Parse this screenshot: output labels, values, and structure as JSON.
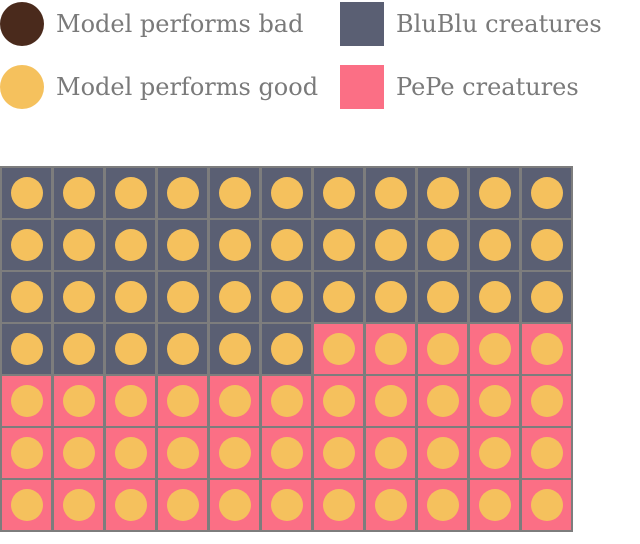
{
  "legend": {
    "bad": {
      "label": "Model performs bad",
      "color": "#4a2a1c",
      "shape": "circle"
    },
    "good": {
      "label": "Model performs good",
      "color": "#f5c15d",
      "shape": "circle"
    },
    "blublu": {
      "label": "BluBlu creatures",
      "color": "#5a5f73",
      "shape": "square"
    },
    "pepe": {
      "label": "PePe creatures",
      "color": "#fb6f85",
      "shape": "square"
    }
  },
  "grid": {
    "columns": 11,
    "rows": 7,
    "blublu_count": 39,
    "pepe_count": 38,
    "bad_count": 0,
    "good_count": 77,
    "border_color": "#7d7d7d"
  }
}
